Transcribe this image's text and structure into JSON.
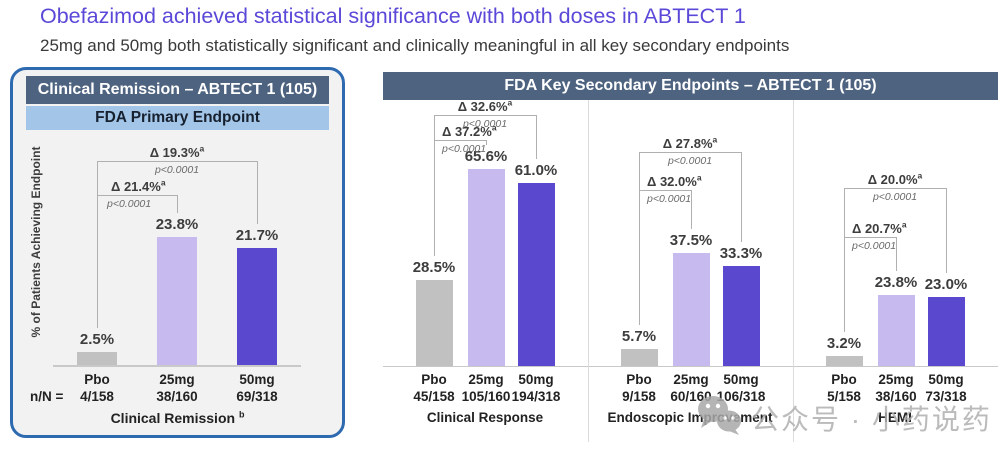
{
  "page": {
    "title": "Obefazimod achieved statistical significance with both doses in ABTECT 1",
    "subtitle": "25mg and 50mg both statistically significant and clinically meaningful in all key secondary endpoints"
  },
  "colors": {
    "title_text": "#5a48d8",
    "panel_border": "#2e6ab0",
    "panel_bg": "#f2f2f3",
    "header_bg": "#4e6380",
    "header_text": "#ffffff",
    "subheader_bg": "#a3c6e8",
    "pbo_bar": "#c1c1c1",
    "dose25_bar": "#c6baee",
    "dose50_bar": "#5a49cf",
    "bracket": "#b0b0b0",
    "axis": "#c9c9c9",
    "separator": "#dcdcdc",
    "value_text": "#3d3d3d",
    "label_text": "#222222",
    "p_text": "#6a6a6a",
    "watermark_text": "#b0b0b0"
  },
  "left_panel": {
    "header": "Clinical Remission – ABTECT 1 (105)",
    "subheader": "FDA Primary Endpoint",
    "y_axis_label": "% of Patients Achieving Endpoint",
    "nN_prefix": "n/N ="
  },
  "right_panel": {
    "header": "FDA Key Secondary Endpoints – ABTECT 1 (105)"
  },
  "watermark": {
    "icon": "wechat-icon",
    "text": "公众号 · 小药说药"
  },
  "chart_data": [
    {
      "type": "bar",
      "panel": "left",
      "title": "Clinical Remission – ABTECT 1 (105)",
      "subtitle": "FDA Primary Endpoint",
      "ylabel": "% of Patients Achieving Endpoint",
      "ylim": [
        0,
        30
      ],
      "grid": false,
      "categories": [
        "Pbo",
        "25mg",
        "50mg"
      ],
      "values": [
        2.5,
        23.8,
        21.7
      ],
      "value_labels": [
        "2.5%",
        "23.8%",
        "21.7%"
      ],
      "n_over_N": [
        "4/158",
        "38/160",
        "69/318"
      ],
      "group_label": "Clinical Remission",
      "group_label_sup": "b",
      "comparisons": [
        {
          "delta": "Δ 21.4%",
          "sup": "a",
          "p": "p<0.0001",
          "from": 0,
          "to": 1
        },
        {
          "delta": "Δ 19.3%",
          "sup": "a",
          "p": "p<0.0001",
          "from": 0,
          "to": 2
        }
      ]
    },
    {
      "type": "bar",
      "panel": "right",
      "title": "FDA Key Secondary Endpoints – ABTECT 1 (105)",
      "ylim": [
        0,
        70
      ],
      "grid": false,
      "categories": [
        "Pbo",
        "25mg",
        "50mg"
      ],
      "groups": [
        {
          "label": "Clinical Response",
          "values": [
            28.5,
            65.6,
            61.0
          ],
          "value_labels": [
            "28.5%",
            "65.6%",
            "61.0%"
          ],
          "n_over_N": [
            "45/158",
            "105/160",
            "194/318"
          ],
          "comparisons": [
            {
              "delta": "Δ 37.2%",
              "sup": "a",
              "p": "p<0.0001",
              "from": 0,
              "to": 1
            },
            {
              "delta": "Δ 32.6%",
              "sup": "a",
              "p": "p<0.0001",
              "from": 0,
              "to": 2
            }
          ]
        },
        {
          "label": "Endoscopic Improvement",
          "values": [
            5.7,
            37.5,
            33.3
          ],
          "value_labels": [
            "5.7%",
            "37.5%",
            "33.3%"
          ],
          "n_over_N": [
            "9/158",
            "60/160",
            "106/318"
          ],
          "comparisons": [
            {
              "delta": "Δ 32.0%",
              "sup": "a",
              "p": "p<0.0001",
              "from": 0,
              "to": 1
            },
            {
              "delta": "Δ 27.8%",
              "sup": "a",
              "p": "p<0.0001",
              "from": 0,
              "to": 2
            }
          ]
        },
        {
          "label": "HEMI",
          "values": [
            3.2,
            23.8,
            23.0
          ],
          "value_labels": [
            "3.2%",
            "23.8%",
            "23.0%"
          ],
          "n_over_N": [
            "5/158",
            "38/160",
            "73/318"
          ],
          "comparisons": [
            {
              "delta": "Δ 20.7%",
              "sup": "a",
              "p": "p<0.0001",
              "from": 0,
              "to": 1
            },
            {
              "delta": "Δ 20.0%",
              "sup": "a",
              "p": "p<0.0001",
              "from": 0,
              "to": 2
            }
          ]
        }
      ]
    }
  ]
}
